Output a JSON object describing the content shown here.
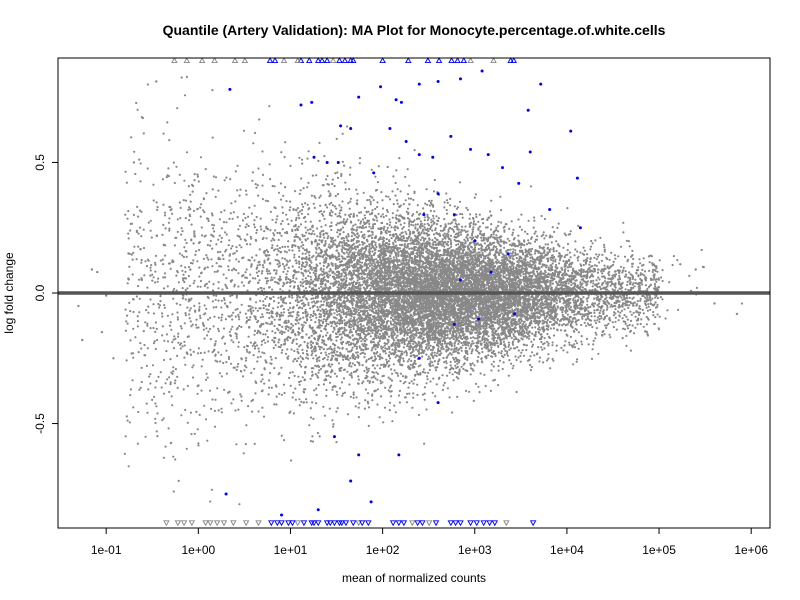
{
  "chart_data": {
    "type": "scatter",
    "title": "Quantile (Artery Validation): MA Plot for Monocyte.percentage.of.white.cells",
    "xlabel": "mean of normalized counts",
    "ylabel": "log fold change",
    "x_scale": "log10",
    "xlim": [
      0.03,
      1600000.0
    ],
    "ylim": [
      -0.9,
      0.9
    ],
    "x_ticks": [
      {
        "value": 0.1,
        "label": "1e-01"
      },
      {
        "value": 1,
        "label": "1e+00"
      },
      {
        "value": 10,
        "label": "1e+01"
      },
      {
        "value": 100,
        "label": "1e+02"
      },
      {
        "value": 1000,
        "label": "1e+03"
      },
      {
        "value": 10000,
        "label": "1e+04"
      },
      {
        "value": 100000,
        "label": "1e+05"
      },
      {
        "value": 1000000,
        "label": "1e+06"
      }
    ],
    "y_ticks": [
      {
        "value": -0.5,
        "label": "-0.5"
      },
      {
        "value": 0.0,
        "label": "0.0"
      },
      {
        "value": 0.5,
        "label": "0.5"
      }
    ],
    "reference_line": {
      "y": 0,
      "color": "#555555"
    },
    "grid": false,
    "colors": {
      "not_significant": "#888888",
      "significant": "#0000ff",
      "reference": "#555555"
    },
    "series": [
      {
        "color": "#0000ff",
        "marker": "circle",
        "points": [
          [
            2.2,
            0.78
          ],
          [
            13,
            0.72
          ],
          [
            17,
            0.73
          ],
          [
            35,
            0.64
          ],
          [
            45,
            0.63
          ],
          [
            55,
            0.75
          ],
          [
            95,
            0.79
          ],
          [
            140,
            0.74
          ],
          [
            160,
            0.73
          ],
          [
            250,
            0.8
          ],
          [
            400,
            0.81
          ],
          [
            700,
            0.82
          ],
          [
            1200,
            0.85
          ],
          [
            5200,
            0.8
          ],
          [
            3800,
            0.7
          ],
          [
            11000,
            0.62
          ],
          [
            4000,
            0.54
          ],
          [
            13000,
            0.44
          ],
          [
            18,
            0.52
          ],
          [
            25,
            0.5
          ],
          [
            33,
            0.5
          ],
          [
            80,
            0.46
          ],
          [
            120,
            0.63
          ],
          [
            180,
            0.58
          ],
          [
            250,
            0.53
          ],
          [
            350,
            0.52
          ],
          [
            550,
            0.6
          ],
          [
            900,
            0.55
          ],
          [
            1400,
            0.53
          ],
          [
            2000,
            0.48
          ],
          [
            3000,
            0.42
          ],
          [
            6500,
            0.32
          ],
          [
            14000,
            0.25
          ],
          [
            400,
            0.38
          ],
          [
            600,
            0.3
          ],
          [
            1000,
            0.2
          ],
          [
            2300,
            0.15
          ],
          [
            280,
            0.3
          ],
          [
            700,
            0.05
          ],
          [
            1500,
            0.08
          ],
          [
            600,
            -0.12
          ],
          [
            1100,
            -0.1
          ],
          [
            2700,
            -0.08
          ],
          [
            250,
            -0.25
          ],
          [
            2.0,
            -0.77
          ],
          [
            8,
            -0.85
          ],
          [
            20,
            -0.83
          ],
          [
            30,
            -0.55
          ],
          [
            55,
            -0.62
          ],
          [
            150,
            -0.62
          ],
          [
            45,
            -0.72
          ],
          [
            75,
            -0.8
          ],
          [
            400,
            -0.42
          ]
        ]
      },
      {
        "color": "#0000ff",
        "marker": "triangle-up",
        "points": [
          [
            6,
            0.89
          ],
          [
            6.8,
            0.89
          ],
          [
            13,
            0.89
          ],
          [
            16,
            0.89
          ],
          [
            20,
            0.89
          ],
          [
            22,
            0.89
          ],
          [
            25,
            0.89
          ],
          [
            34,
            0.89
          ],
          [
            39,
            0.89
          ],
          [
            45,
            0.89
          ],
          [
            48,
            0.89
          ],
          [
            100,
            0.89
          ],
          [
            190,
            0.89
          ],
          [
            310,
            0.89
          ],
          [
            410,
            0.89
          ],
          [
            560,
            0.89
          ],
          [
            650,
            0.89
          ],
          [
            760,
            0.89
          ],
          [
            2450,
            0.89
          ],
          [
            2650,
            0.89
          ]
        ]
      },
      {
        "color": "#888888",
        "marker": "triangle-up",
        "points": [
          [
            0.55,
            0.89
          ],
          [
            0.75,
            0.89
          ],
          [
            1.1,
            0.89
          ],
          [
            1.5,
            0.89
          ],
          [
            2.5,
            0.89
          ],
          [
            3.2,
            0.89
          ],
          [
            8.5,
            0.89
          ],
          [
            12,
            0.89
          ],
          [
            29,
            0.89
          ],
          [
            900,
            0.89
          ],
          [
            1600,
            0.89
          ]
        ]
      },
      {
        "color": "#888888",
        "marker": "triangle-down",
        "points": [
          [
            0.45,
            -0.88
          ],
          [
            0.6,
            -0.88
          ],
          [
            0.7,
            -0.88
          ],
          [
            0.85,
            -0.88
          ],
          [
            1.2,
            -0.88
          ],
          [
            1.35,
            -0.88
          ],
          [
            1.6,
            -0.88
          ],
          [
            1.9,
            -0.88
          ],
          [
            2.4,
            -0.88
          ],
          [
            3.3,
            -0.88
          ],
          [
            4.5,
            -0.88
          ],
          [
            12,
            -0.88
          ],
          [
            55,
            -0.88
          ],
          [
            210,
            -0.88
          ],
          [
            320,
            -0.88
          ],
          [
            2200,
            -0.88
          ]
        ]
      },
      {
        "color": "#0000ff",
        "marker": "triangle-down",
        "points": [
          [
            6.2,
            -0.88
          ],
          [
            7.2,
            -0.88
          ],
          [
            8.0,
            -0.88
          ],
          [
            9.5,
            -0.88
          ],
          [
            10.5,
            -0.88
          ],
          [
            14,
            -0.88
          ],
          [
            17,
            -0.88
          ],
          [
            18,
            -0.88
          ],
          [
            20,
            -0.88
          ],
          [
            25,
            -0.88
          ],
          [
            27,
            -0.88
          ],
          [
            30,
            -0.88
          ],
          [
            34,
            -0.88
          ],
          [
            36,
            -0.88
          ],
          [
            40,
            -0.88
          ],
          [
            48,
            -0.88
          ],
          [
            60,
            -0.88
          ],
          [
            70,
            -0.88
          ],
          [
            130,
            -0.88
          ],
          [
            150,
            -0.88
          ],
          [
            170,
            -0.88
          ],
          [
            240,
            -0.88
          ],
          [
            270,
            -0.88
          ],
          [
            380,
            -0.88
          ],
          [
            550,
            -0.88
          ],
          [
            620,
            -0.88
          ],
          [
            700,
            -0.88
          ],
          [
            900,
            -0.88
          ],
          [
            1050,
            -0.88
          ],
          [
            1250,
            -0.88
          ],
          [
            1450,
            -0.88
          ],
          [
            1650,
            -0.88
          ],
          [
            4300,
            -0.88
          ]
        ]
      }
    ],
    "background_cloud": {
      "color": "#888888",
      "marker": "circle",
      "n_points": 14000,
      "x_range_log10": [
        -1.3,
        5.9
      ],
      "y_range": [
        -0.87,
        0.87
      ],
      "dense_band_x": [
        100,
        100000
      ],
      "dense_band_halfwidth": 0.1,
      "points": [
        [
          0.05,
          -0.05
        ],
        [
          0.055,
          -0.18
        ],
        [
          0.07,
          0.09
        ],
        [
          0.08,
          0.08
        ],
        [
          0.09,
          -0.15
        ],
        [
          0.1,
          -0.01
        ],
        [
          0.12,
          -0.25
        ],
        [
          0.18,
          0.15
        ],
        [
          0.2,
          0.5
        ],
        [
          0.25,
          0.67
        ],
        [
          0.35,
          0.81
        ],
        [
          700000,
          -0.08
        ],
        [
          400000,
          -0.04
        ],
        [
          300000,
          0.1
        ],
        [
          250000,
          0.09
        ],
        [
          170000,
          0.11
        ]
      ]
    }
  }
}
